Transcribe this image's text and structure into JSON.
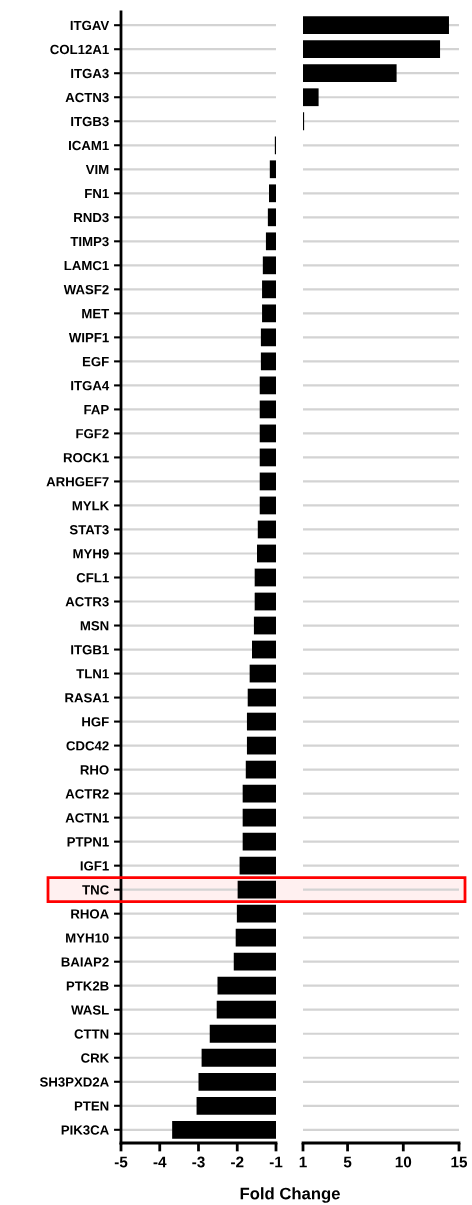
{
  "chart_data": [
    {
      "type": "bar",
      "orientation": "horizontal",
      "xlabel": "Fold Change",
      "categories": [
        "ITGAV",
        "COL12A1",
        "ITGA3",
        "ACTN3",
        "ITGB3",
        "ICAM1",
        "VIM",
        "FN1",
        "RND3",
        "TIMP3",
        "LAMC1",
        "WASF2",
        "MET",
        "WIPF1",
        "EGF",
        "ITGA4",
        "FAP",
        "FGF2",
        "ROCK1",
        "ARHGEF7",
        "MYLK",
        "STAT3",
        "MYH9",
        "CFL1",
        "ACTR3",
        "MSN",
        "ITGB1",
        "TLN1",
        "RASA1",
        "HGF",
        "CDC42",
        "RHO",
        "ACTR2",
        "ACTN1",
        "PTPN1",
        "IGF1",
        "TNC",
        "RHOA",
        "MYH10",
        "BAIAP2",
        "PTK2B",
        "WASL",
        "CTTN",
        "CRK",
        "SH3PXD2A",
        "PTEN",
        "PIK3CA"
      ],
      "values": [
        null,
        null,
        null,
        null,
        null,
        -1.03,
        -1.16,
        -1.18,
        -1.21,
        -1.26,
        -1.34,
        -1.36,
        -1.36,
        -1.39,
        -1.39,
        -1.42,
        -1.42,
        -1.42,
        -1.42,
        -1.42,
        -1.42,
        -1.47,
        -1.49,
        -1.55,
        -1.55,
        -1.57,
        -1.62,
        -1.68,
        -1.73,
        -1.75,
        -1.75,
        -1.78,
        -1.86,
        -1.86,
        -1.86,
        -1.94,
        -1.99,
        -2.01,
        -2.04,
        -2.09,
        -2.51,
        -2.53,
        -2.71,
        -2.92,
        -3.0,
        -3.05,
        -3.68
      ],
      "color": "#000000",
      "xlim": [
        -5,
        -1
      ],
      "xticks": [
        -5,
        -4,
        -3,
        -2,
        -1
      ],
      "grid": "y",
      "bands": [
        {
          "axis": "y",
          "from": "TNC",
          "to": "TNC",
          "color": "#ff0000"
        }
      ]
    },
    {
      "type": "bar",
      "orientation": "horizontal",
      "values": [
        14.1,
        13.3,
        9.4,
        2.4,
        1.1,
        null,
        null,
        null,
        null,
        null,
        null,
        null,
        null,
        null,
        null,
        null,
        null,
        null,
        null,
        null,
        null,
        null,
        null,
        null,
        null,
        null,
        null,
        null,
        null,
        null,
        null,
        null,
        null,
        null,
        null,
        null,
        null,
        null,
        null,
        null,
        null,
        null,
        null,
        null,
        null,
        null,
        null
      ],
      "color": "#000000",
      "xlim": [
        1,
        15
      ],
      "xticks": [
        1,
        5,
        10,
        15
      ],
      "grid": "y",
      "tick_labels": "x"
    }
  ]
}
